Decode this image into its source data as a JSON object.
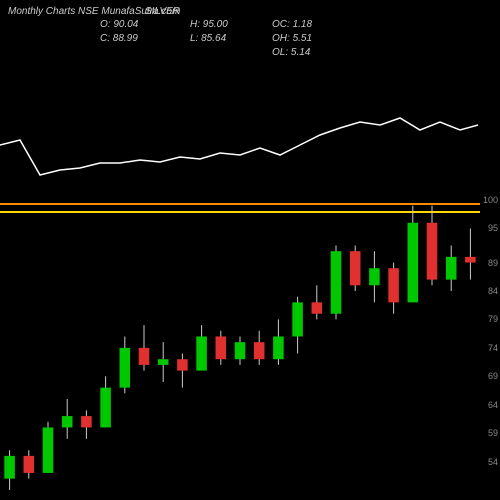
{
  "header": {
    "title": "Monthly Charts NSE MunafaSutra.com",
    "ticker": "SILVER"
  },
  "stats": {
    "O": "90.04",
    "C": "88.99",
    "H": "95.00",
    "L": "85.64",
    "OC": "1.18",
    "OH": "5.51",
    "OL": "5.14"
  },
  "colors": {
    "bg": "#000000",
    "up": "#00c800",
    "down": "#e03030",
    "wick": "#cccccc",
    "line": "#ffffff",
    "hline1": "#ff8c00",
    "hline2": "#ffd700",
    "text": "#cccccc",
    "axis": "#888888"
  },
  "lineChart": {
    "points": [
      [
        0,
        95
      ],
      [
        20,
        90
      ],
      [
        40,
        125
      ],
      [
        60,
        120
      ],
      [
        80,
        118
      ],
      [
        100,
        113
      ],
      [
        120,
        113
      ],
      [
        140,
        110
      ],
      [
        160,
        112
      ],
      [
        180,
        107
      ],
      [
        200,
        109
      ],
      [
        220,
        103
      ],
      [
        240,
        105
      ],
      [
        260,
        98
      ],
      [
        280,
        105
      ],
      [
        300,
        95
      ],
      [
        320,
        85
      ],
      [
        340,
        78
      ],
      [
        360,
        72
      ],
      [
        380,
        75
      ],
      [
        400,
        68
      ],
      [
        420,
        80
      ],
      [
        440,
        72
      ],
      [
        460,
        80
      ],
      [
        478,
        75
      ]
    ]
  },
  "candleChart": {
    "ymin": 49,
    "ymax": 100,
    "hlines": [
      {
        "y": 99.5,
        "color": "#ff8c00"
      },
      {
        "y": 98,
        "color": "#ffd700"
      }
    ],
    "yticks": [
      {
        "v": 100,
        "l": "100"
      },
      {
        "v": 95,
        "l": "95"
      },
      {
        "v": 89,
        "l": "89"
      },
      {
        "v": 84,
        "l": "84"
      },
      {
        "v": 79,
        "l": "79"
      },
      {
        "v": 74,
        "l": "74"
      },
      {
        "v": 69,
        "l": "69"
      },
      {
        "v": 64,
        "l": "64"
      },
      {
        "v": 59,
        "l": "59"
      },
      {
        "v": 54,
        "l": "54"
      }
    ],
    "candles": [
      {
        "o": 51,
        "c": 55,
        "h": 56,
        "l": 49
      },
      {
        "o": 55,
        "c": 52,
        "h": 56,
        "l": 51
      },
      {
        "o": 52,
        "c": 60,
        "h": 61,
        "l": 52
      },
      {
        "o": 60,
        "c": 62,
        "h": 65,
        "l": 58
      },
      {
        "o": 62,
        "c": 60,
        "h": 63,
        "l": 58
      },
      {
        "o": 60,
        "c": 67,
        "h": 69,
        "l": 60
      },
      {
        "o": 67,
        "c": 74,
        "h": 76,
        "l": 66
      },
      {
        "o": 74,
        "c": 71,
        "h": 78,
        "l": 70
      },
      {
        "o": 71,
        "c": 72,
        "h": 75,
        "l": 68
      },
      {
        "o": 72,
        "c": 70,
        "h": 73,
        "l": 67
      },
      {
        "o": 70,
        "c": 76,
        "h": 78,
        "l": 70
      },
      {
        "o": 76,
        "c": 72,
        "h": 77,
        "l": 71
      },
      {
        "o": 72,
        "c": 75,
        "h": 76,
        "l": 71
      },
      {
        "o": 75,
        "c": 72,
        "h": 77,
        "l": 71
      },
      {
        "o": 72,
        "c": 76,
        "h": 79,
        "l": 71
      },
      {
        "o": 76,
        "c": 82,
        "h": 83,
        "l": 73
      },
      {
        "o": 82,
        "c": 80,
        "h": 85,
        "l": 79
      },
      {
        "o": 80,
        "c": 91,
        "h": 92,
        "l": 79
      },
      {
        "o": 91,
        "c": 85,
        "h": 92,
        "l": 84
      },
      {
        "o": 85,
        "c": 88,
        "h": 91,
        "l": 82
      },
      {
        "o": 88,
        "c": 82,
        "h": 89,
        "l": 80
      },
      {
        "o": 82,
        "c": 96,
        "h": 99,
        "l": 82
      },
      {
        "o": 96,
        "c": 86,
        "h": 99,
        "l": 85
      },
      {
        "o": 86,
        "c": 90,
        "h": 92,
        "l": 84
      },
      {
        "o": 90,
        "c": 89,
        "h": 95,
        "l": 86
      }
    ]
  }
}
